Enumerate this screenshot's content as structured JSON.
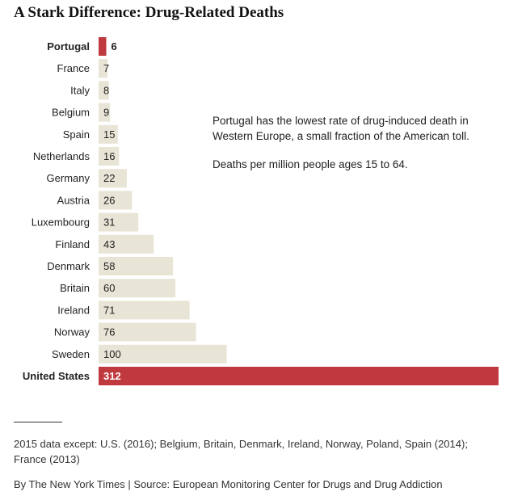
{
  "chart_data": {
    "type": "bar",
    "orientation": "horizontal",
    "title": "A Stark Difference: Drug-Related Deaths",
    "categories": [
      "Portugal",
      "France",
      "Italy",
      "Belgium",
      "Spain",
      "Netherlands",
      "Germany",
      "Austria",
      "Luxembourg",
      "Finland",
      "Denmark",
      "Britain",
      "Ireland",
      "Norway",
      "Sweden",
      "United States"
    ],
    "values": [
      6,
      7,
      8,
      9,
      15,
      16,
      22,
      26,
      31,
      43,
      58,
      60,
      71,
      76,
      100,
      312
    ],
    "highlighted": [
      "Portugal",
      "United States"
    ],
    "xlim": [
      0,
      312
    ],
    "grid": false,
    "legend": "none",
    "colors": {
      "bar": "#e8e5d6",
      "highlight": "#c0393f",
      "label_text": "#222222",
      "highlight_value_text": "#ffffff"
    }
  },
  "annotation": {
    "text": "Portugal has the lowest rate of drug-induced death in Western Europe, a small fraction of the American toll.",
    "unit_note": "Deaths per million people ages 15 to 64."
  },
  "footer": {
    "note": "2015 data except: U.S. (2016); Belgium, Britain, Denmark, Ireland, Norway, Poland, Spain (2014); France (2013)",
    "credit": "By The New York Times | Source: European Monitoring Center for Drugs and Drug Addiction"
  }
}
